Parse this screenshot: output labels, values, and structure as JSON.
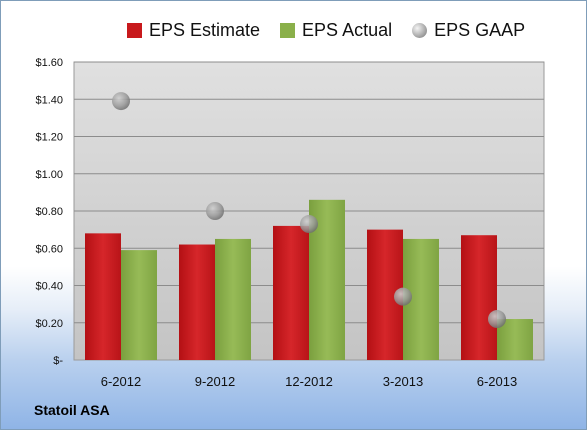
{
  "company": "Statoil ASA",
  "chart_data": {
    "type": "bar",
    "categories": [
      "6-2012",
      "9-2012",
      "12-2012",
      "3-2013",
      "6-2013"
    ],
    "series": [
      {
        "name": "EPS Estimate",
        "kind": "bar",
        "color": "#c8191c",
        "values": [
          0.68,
          0.62,
          0.72,
          0.7,
          0.67
        ]
      },
      {
        "name": "EPS Actual",
        "kind": "bar",
        "color": "#8ab04a",
        "values": [
          0.59,
          0.65,
          0.86,
          0.65,
          0.22
        ]
      },
      {
        "name": "EPS GAAP",
        "kind": "scatter",
        "color": "#a8a8a8",
        "values": [
          1.39,
          0.8,
          0.73,
          0.34,
          0.22
        ]
      }
    ],
    "yticks": [
      "$-",
      "$0.20",
      "$0.40",
      "$0.60",
      "$0.80",
      "$1.00",
      "$1.20",
      "$1.40",
      "$1.60"
    ],
    "ylim": [
      0,
      1.6
    ],
    "grid": true,
    "legend_position": "top"
  }
}
